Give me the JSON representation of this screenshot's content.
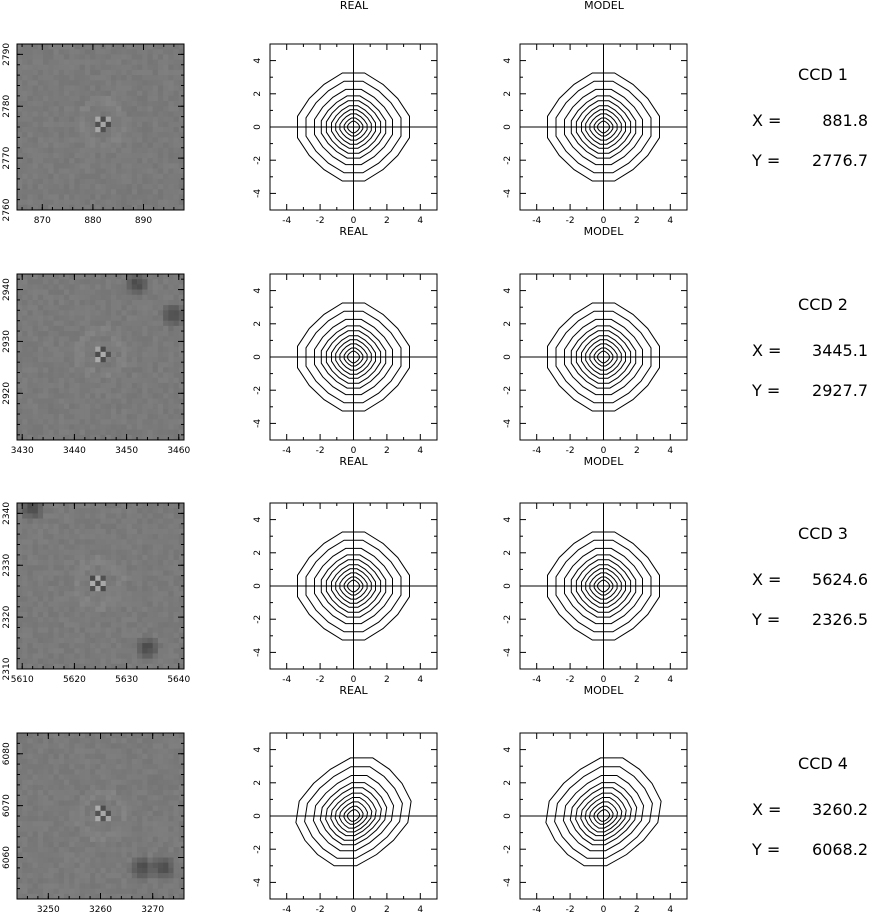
{
  "header": {
    "real_title": "REAL",
    "model_title": "MODEL"
  },
  "contour_axes": {
    "xlim": [
      -5,
      5
    ],
    "ylim": [
      -5,
      5
    ],
    "xticks": [
      "-4",
      "-2",
      "0",
      "2",
      "4"
    ],
    "yticks": [
      "-4",
      "-2",
      "0",
      "2",
      "4"
    ],
    "real_xlabel": "REAL",
    "model_xlabel": "MODEL"
  },
  "rows": [
    {
      "ccd": "CCD 1",
      "x_label": "X =",
      "x_value": "881.8",
      "y_label": "Y =",
      "y_value": "2776.7",
      "image": {
        "xlim": [
          865,
          898
        ],
        "ylim": [
          2760,
          2792
        ],
        "xticks": [
          "870",
          "880",
          "890"
        ],
        "yticks": [
          "2760",
          "2770",
          "2780",
          "2790"
        ],
        "star": [
          881.8,
          2776.7
        ],
        "dark_blobs": []
      },
      "show_xlabel": true
    },
    {
      "ccd": "CCD 2",
      "x_label": "X =",
      "x_value": "3445.1",
      "y_label": "Y =",
      "y_value": "2927.7",
      "image": {
        "xlim": [
          3429,
          3461
        ],
        "ylim": [
          2911,
          2943
        ],
        "xticks": [
          "3430",
          "3440",
          "3450",
          "3460"
        ],
        "yticks": [
          "2920",
          "2930",
          "2940"
        ],
        "star": [
          3445.1,
          2927.7
        ],
        "dark_blobs": [
          [
            3452,
            2941
          ],
          [
            3459,
            2935
          ]
        ]
      },
      "show_xlabel": true
    },
    {
      "ccd": "CCD 3",
      "x_label": "X =",
      "x_value": "5624.6",
      "y_label": "Y =",
      "y_value": "2326.5",
      "image": {
        "xlim": [
          5609,
          5641
        ],
        "ylim": [
          2310,
          2342
        ],
        "xticks": [
          "5610",
          "5620",
          "5630",
          "5640"
        ],
        "yticks": [
          "2310",
          "2320",
          "2330",
          "2340"
        ],
        "star": [
          5624.6,
          2326.5
        ],
        "dark_blobs": [
          [
            5612,
            2341
          ],
          [
            5634,
            2314
          ]
        ]
      },
      "show_xlabel": true
    },
    {
      "ccd": "CCD 4",
      "x_label": "X =",
      "x_value": "3260.2",
      "y_label": "Y =",
      "y_value": "6068.2",
      "image": {
        "xlim": [
          3244,
          3276
        ],
        "ylim": [
          6052,
          6084
        ],
        "xticks": [
          "3250",
          "3260",
          "3270"
        ],
        "yticks": [
          "6060",
          "6070",
          "6080"
        ],
        "star": [
          3260.2,
          6068.2
        ],
        "dark_blobs": [
          [
            3272,
            6058
          ],
          [
            3268,
            6058
          ]
        ]
      },
      "show_xlabel": false
    }
  ],
  "colors": {
    "ink": "#000000",
    "image_gray": "#7d7d7d",
    "background": "#ffffff"
  }
}
